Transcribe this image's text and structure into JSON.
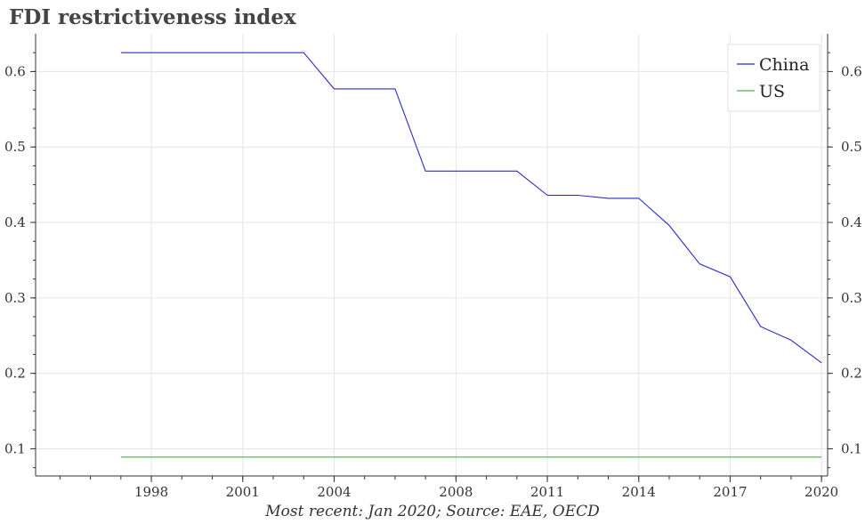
{
  "chart_data": {
    "type": "line",
    "title": "FDI restrictiveness index",
    "caption": "Most recent: Jan 2020; Source: EAE, OECD",
    "xlim": [
      1994.2,
      2020.2
    ],
    "ylim": [
      0.064,
      0.65
    ],
    "x_ticks": [
      "1998",
      "2001",
      "2004",
      "2008",
      "2011",
      "2014",
      "2017",
      "2020"
    ],
    "y_ticks": [
      "0.1",
      "0.2",
      "0.3",
      "0.4",
      "0.5",
      "0.6"
    ],
    "legend_position": "top-right",
    "grid": true,
    "series": [
      {
        "name": "China",
        "color": "#2b2bcc",
        "x": [
          "1997-01",
          "2003-01",
          "2004-01",
          "2006-01",
          "2007-01",
          "2010-01",
          "2011-01",
          "2012-01",
          "2013-01",
          "2014-01",
          "2015-01",
          "2016-01",
          "2017-01",
          "2018-01",
          "2019-01",
          "2020-01"
        ],
        "values": [
          0.625,
          0.625,
          0.577,
          0.577,
          0.468,
          0.468,
          0.436,
          0.436,
          0.432,
          0.432,
          0.396,
          0.345,
          0.328,
          0.262,
          0.244,
          0.214
        ]
      },
      {
        "name": "US",
        "color": "#4caf50",
        "x": [
          "1997-01",
          "2020-01"
        ],
        "values": [
          0.089,
          0.089
        ]
      }
    ]
  }
}
